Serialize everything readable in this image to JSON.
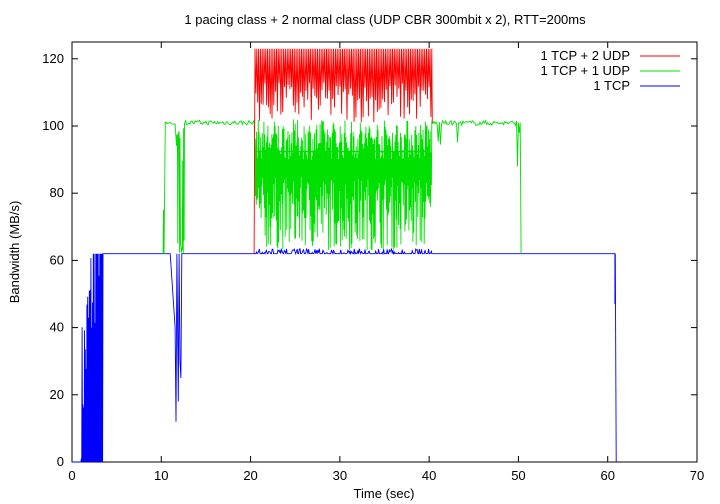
{
  "chart_data": {
    "type": "line",
    "title": "1 pacing class + 2 normal class (UDP CBR 300mbit x 2), RTT=200ms",
    "xlabel": "Time (sec)",
    "ylabel": "Bandwidth (MB/s)",
    "xlim": [
      0,
      70
    ],
    "ylim": [
      0,
      125
    ],
    "xticks": [
      0,
      10,
      20,
      30,
      40,
      50,
      60,
      70
    ],
    "yticks": [
      0,
      20,
      40,
      60,
      80,
      100,
      120
    ],
    "grid": false,
    "legend_position": "top-right",
    "series": [
      {
        "name": "1 TCP + 2 UDP",
        "color": "#ff0000",
        "x": [
          20.5,
          21.5,
          22.5,
          23.5,
          24.5,
          25.5,
          26.5,
          27.5,
          28.5,
          29.5,
          30.5,
          31.5,
          32.5,
          33.5,
          34.5,
          35.5,
          36.5,
          37.5,
          38.5,
          39.5,
          40.3
        ],
        "y": [
          123,
          123,
          123,
          123,
          123,
          123,
          123,
          123,
          123,
          123,
          123,
          123,
          123,
          123,
          123,
          123,
          123,
          123,
          123,
          123,
          123
        ],
        "y_min": 100,
        "note": "oscillates between about 100 and 123 from 20.5 to 40.3 s"
      },
      {
        "name": "1 TCP + 1 UDP",
        "color": "#00e000",
        "x": [
          10.2,
          10.5,
          11.5,
          12.0,
          12.4,
          13.0,
          20.0,
          20.5,
          40.3,
          41.0,
          50.0,
          50.3
        ],
        "y": [
          62,
          101,
          101,
          62,
          101,
          101,
          101,
          92,
          92,
          101,
          101,
          62
        ],
        "note": "steady about 101 from 10.5 to 20.5 and 40.3 to 50.3; oscillates between about 63 and 92 from 20.5 to 40.3 s"
      },
      {
        "name": "1 TCP",
        "color": "#0000ff",
        "x": [
          1.0,
          2.0,
          2.5,
          3.0,
          3.5,
          11.5,
          11.8,
          12.3,
          20.0,
          60.8,
          61.0
        ],
        "y": [
          0,
          5,
          61,
          62,
          62,
          62,
          12,
          62,
          62,
          62,
          0
        ],
        "note": "ramps up 1 to 3.5 s, steady about 62 until 60.8 s, dip near 12 s"
      }
    ]
  }
}
